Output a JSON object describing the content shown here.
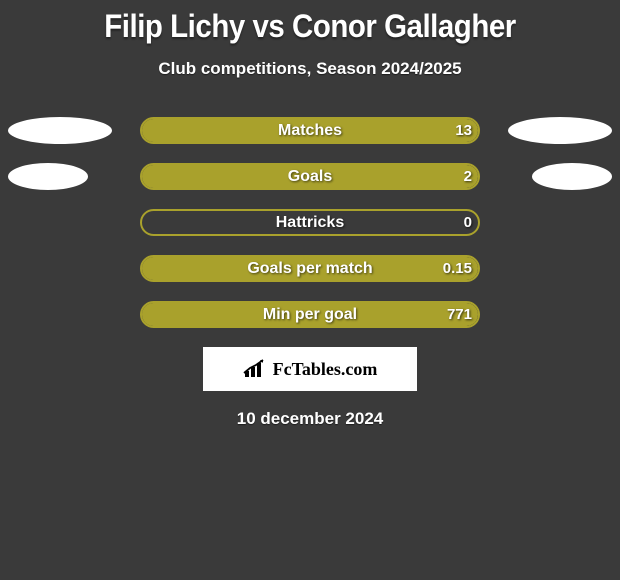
{
  "title": {
    "player1": "Filip Lichy",
    "vs": "vs",
    "player2": "Conor Gallagher"
  },
  "subtitle": "Club competitions, Season 2024/2025",
  "colors": {
    "player1_accent": "#a9a12c",
    "player2_accent": "#ffffff",
    "background": "#3a3a3a"
  },
  "stats": [
    {
      "label": "Matches",
      "left_value": "",
      "right_value": "13",
      "left_fill_pct": 0,
      "right_fill_pct": 100,
      "left_ellipse_width": 104,
      "right_ellipse_width": 104,
      "fill_color_left": "#a9a12c",
      "fill_color_right": "#a9a12c",
      "border_color": "#a9a12c"
    },
    {
      "label": "Goals",
      "left_value": "",
      "right_value": "2",
      "left_fill_pct": 0,
      "right_fill_pct": 100,
      "left_ellipse_width": 80,
      "right_ellipse_width": 80,
      "fill_color_left": "#a9a12c",
      "fill_color_right": "#a9a12c",
      "border_color": "#a9a12c"
    },
    {
      "label": "Hattricks",
      "left_value": "",
      "right_value": "0",
      "left_fill_pct": 0,
      "right_fill_pct": 0,
      "left_ellipse_width": 0,
      "right_ellipse_width": 0,
      "fill_color_left": "#a9a12c",
      "fill_color_right": "#a9a12c",
      "border_color": "#a9a12c"
    },
    {
      "label": "Goals per match",
      "left_value": "",
      "right_value": "0.15",
      "left_fill_pct": 0,
      "right_fill_pct": 100,
      "left_ellipse_width": 0,
      "right_ellipse_width": 0,
      "fill_color_left": "#a9a12c",
      "fill_color_right": "#a9a12c",
      "border_color": "#a9a12c"
    },
    {
      "label": "Min per goal",
      "left_value": "",
      "right_value": "771",
      "left_fill_pct": 0,
      "right_fill_pct": 100,
      "left_ellipse_width": 0,
      "right_ellipse_width": 0,
      "fill_color_left": "#a9a12c",
      "fill_color_right": "#a9a12c",
      "border_color": "#a9a12c"
    }
  ],
  "branding": "FcTables.com",
  "date": "10 december 2024"
}
